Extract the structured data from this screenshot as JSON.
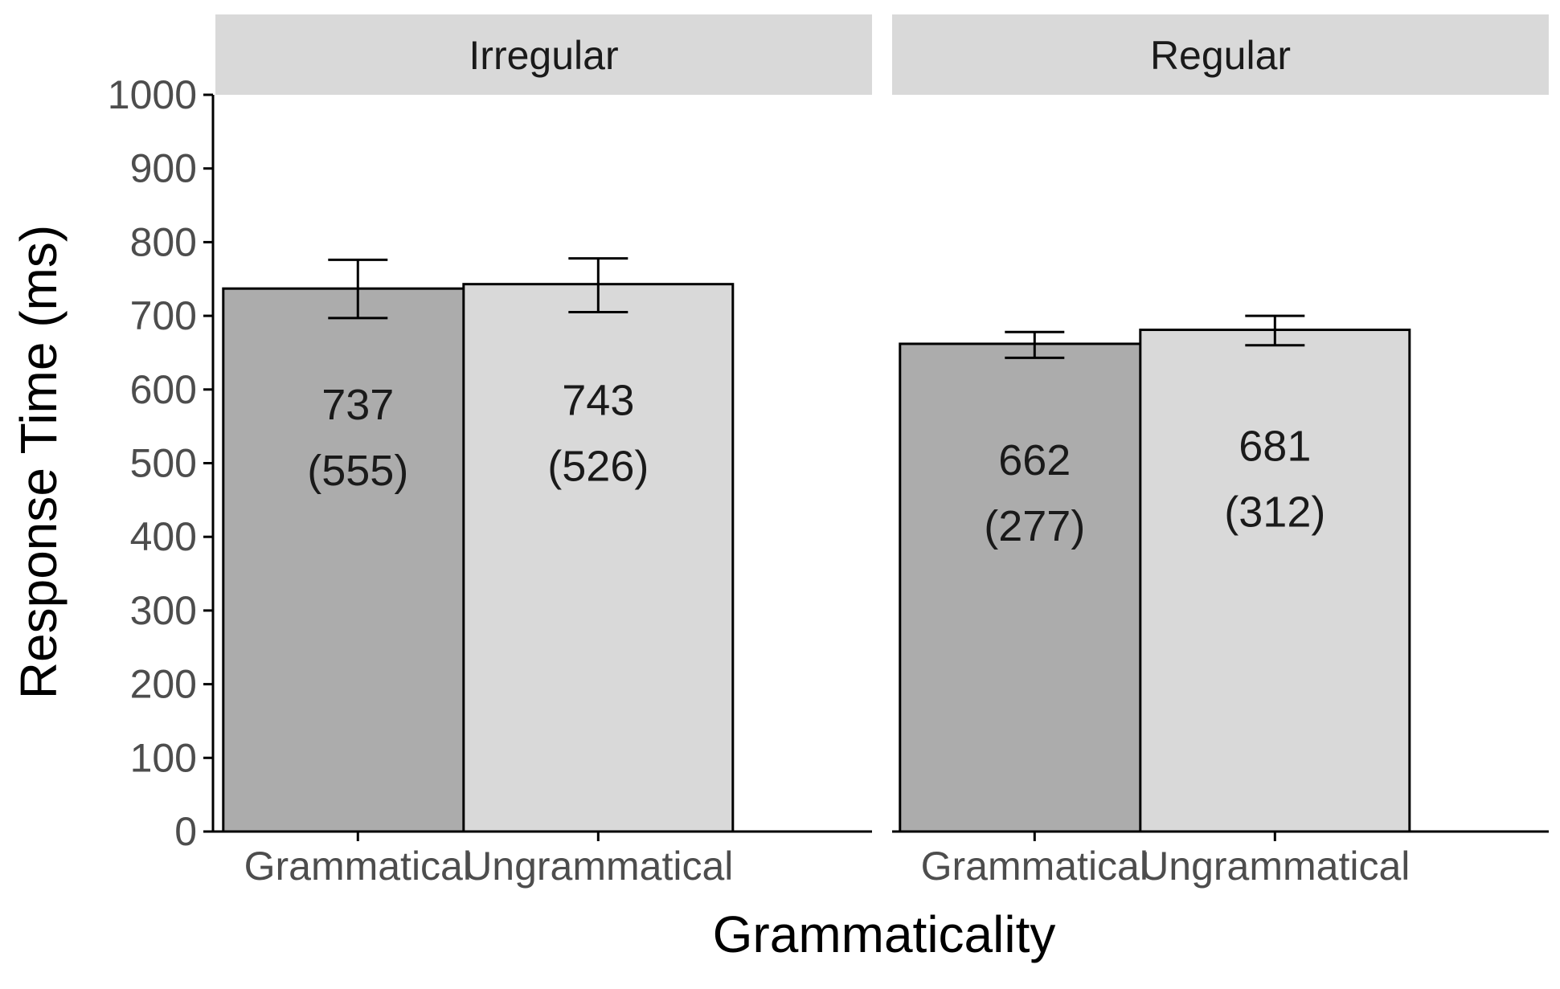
{
  "chart_data": {
    "type": "bar",
    "ylabel": "Response Time (ms)",
    "xlabel": "Grammaticality",
    "ylim": [
      0,
      1000
    ],
    "yticks": [
      0,
      100,
      200,
      300,
      400,
      500,
      600,
      700,
      800,
      900,
      1000
    ],
    "grid": false,
    "facets": [
      {
        "name": "Irregular",
        "bars": [
          {
            "category": "Grammatical",
            "value": 737,
            "sd": 555,
            "value_label": "737",
            "sd_label": "(555)",
            "err_low": 697,
            "err_high": 776,
            "color": "#acacac"
          },
          {
            "category": "Ungrammatical",
            "value": 743,
            "sd": 526,
            "value_label": "743",
            "sd_label": "(526)",
            "err_low": 705,
            "err_high": 778,
            "color": "#d9d9d9"
          }
        ]
      },
      {
        "name": "Regular",
        "bars": [
          {
            "category": "Grammatical",
            "value": 662,
            "sd": 277,
            "value_label": "662",
            "sd_label": "(277)",
            "err_low": 643,
            "err_high": 678,
            "color": "#acacac"
          },
          {
            "category": "Ungrammatical",
            "value": 681,
            "sd": 312,
            "value_label": "681",
            "sd_label": "(312)",
            "err_low": 660,
            "err_high": 700,
            "color": "#d9d9d9"
          }
        ]
      }
    ]
  },
  "colors": {
    "strip_background": "#d9d9d9",
    "axis_line": "#000000",
    "bar_outline": "#000000"
  }
}
